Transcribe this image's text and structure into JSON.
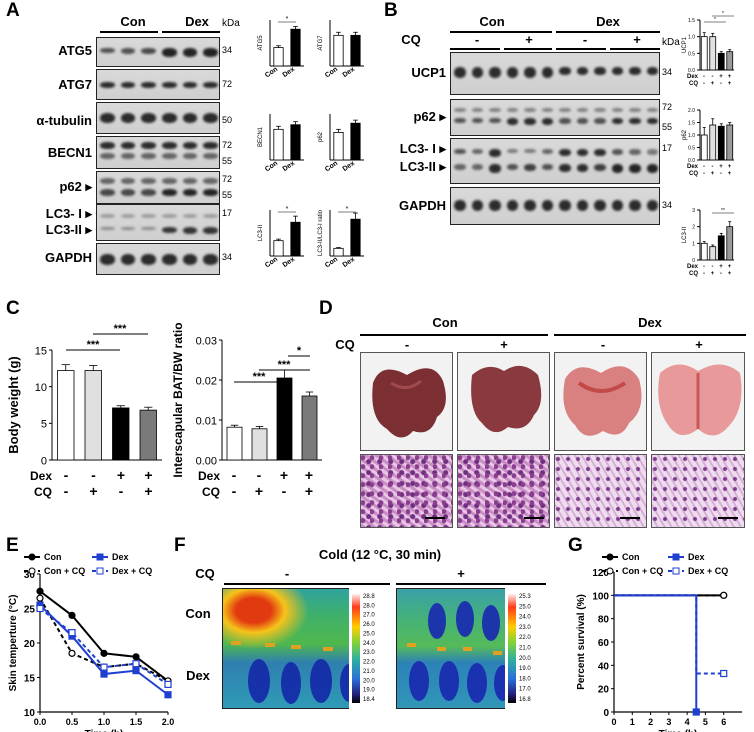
{
  "panels": {
    "A": "A",
    "B": "B",
    "C": "C",
    "D": "D",
    "E": "E",
    "F": "F",
    "G": "G"
  },
  "panelA": {
    "groups": [
      "Con",
      "Dex"
    ],
    "kda": "kDa",
    "rows": [
      {
        "label": "ATG5",
        "mw": [
          "34"
        ]
      },
      {
        "label": "ATG7",
        "mw": [
          "72"
        ]
      },
      {
        "label": "α-tubulin",
        "mw": [
          "50"
        ]
      },
      {
        "label": "BECN1",
        "mw": [
          "72",
          "55"
        ]
      },
      {
        "label": "p62 ▸",
        "mw": [
          "72",
          "55"
        ]
      },
      {
        "label": "LC3- I ▸",
        "mw": [
          "17"
        ]
      },
      {
        "label": "LC3-II ▸",
        "mw": []
      },
      {
        "label": "GAPDH",
        "mw": [
          "34"
        ]
      }
    ],
    "bar_xlabels": [
      "Con",
      "Dex"
    ]
  },
  "panelB": {
    "groups": [
      "Con",
      "Dex"
    ],
    "cq_label": "CQ",
    "cq_signs": [
      "-",
      "+",
      "-",
      "+"
    ],
    "kda": "kDa",
    "rows": [
      {
        "label": "UCP1",
        "mw": [
          "34"
        ]
      },
      {
        "label": "p62 ▸",
        "mw": [
          "72",
          "55"
        ]
      },
      {
        "label": "LC3- I ▸",
        "mw": [
          "17"
        ]
      },
      {
        "label": "LC3-II ▸",
        "mw": []
      },
      {
        "label": "GAPDH",
        "mw": [
          "34"
        ]
      }
    ],
    "dex_row": [
      "Dex",
      "-",
      "-",
      "+",
      "+"
    ],
    "cq_row": [
      "CQ",
      "-",
      "+",
      "-",
      "+"
    ]
  },
  "panelC": {
    "dex_row": [
      "Dex",
      "-",
      "-",
      "+",
      "+"
    ],
    "cq_row": [
      "CQ",
      "-",
      "+",
      "-",
      "+"
    ],
    "sig_left": [
      "***",
      "***"
    ],
    "sig_right": [
      "*",
      "***",
      "***"
    ]
  },
  "panelD": {
    "groups": [
      "Con",
      "Dex"
    ],
    "cq_label": "CQ",
    "cq_signs": [
      "-",
      "+",
      "-",
      "+"
    ]
  },
  "panelF": {
    "title": "Cold (12 °C, 30 min)",
    "cq_label": "CQ",
    "cq_signs": [
      "-",
      "+"
    ],
    "row_labels": [
      "Con",
      "Dex"
    ],
    "scale_left": [
      "28.8",
      "28.0",
      "27.0",
      "26.0",
      "25.0",
      "24.0",
      "23.0",
      "22.0",
      "21.0",
      "20.0",
      "19.0",
      "18.4"
    ],
    "scale_right": [
      "25.3",
      "25.0",
      "24.0",
      "23.0",
      "22.0",
      "21.0",
      "20.0",
      "19.0",
      "18.0",
      "17.0",
      "16.8"
    ]
  },
  "colors": {
    "accent": "#1f3fd0",
    "black": "#000000",
    "grey": "#9a9a9a",
    "lightgrey": "#d9d9d9"
  },
  "chart_data": [
    {
      "id": "A-ATG5",
      "type": "bar",
      "categories": [
        "Con",
        "Dex"
      ],
      "values": [
        1.0,
        2.0
      ],
      "errors": [
        0.1,
        0.15
      ],
      "ylabel": "ATG5",
      "ylim": [
        0,
        2.5
      ],
      "annotations": [
        "*"
      ]
    },
    {
      "id": "A-ATG7",
      "type": "bar",
      "categories": [
        "Con",
        "Dex"
      ],
      "values": [
        1.0,
        1.0
      ],
      "errors": [
        0.1,
        0.1
      ],
      "ylabel": "ATG7",
      "ylim": [
        0,
        1.5
      ]
    },
    {
      "id": "A-BECN1",
      "type": "bar",
      "categories": [
        "Con",
        "Dex"
      ],
      "values": [
        1.0,
        1.15
      ],
      "errors": [
        0.1,
        0.1
      ],
      "ylabel": "BECN1",
      "ylim": [
        0,
        1.5
      ]
    },
    {
      "id": "A-p62",
      "type": "bar",
      "categories": [
        "Con",
        "Dex"
      ],
      "values": [
        0.9,
        1.2
      ],
      "errors": [
        0.1,
        0.1
      ],
      "ylabel": "p62",
      "ylim": [
        0,
        1.5
      ]
    },
    {
      "id": "A-LC3II",
      "type": "bar",
      "categories": [
        "Con",
        "Dex"
      ],
      "values": [
        1.0,
        2.2
      ],
      "errors": [
        0.1,
        0.4
      ],
      "ylabel": "LC3-II",
      "ylim": [
        0,
        3
      ],
      "annotations": [
        "*"
      ]
    },
    {
      "id": "A-ratio",
      "type": "bar",
      "categories": [
        "Con",
        "Dex"
      ],
      "values": [
        0.5,
        2.4
      ],
      "errors": [
        0.05,
        0.4
      ],
      "ylabel": "LC3-II/LC3-I ratio",
      "ylim": [
        0,
        3
      ],
      "annotations": [
        "*"
      ]
    },
    {
      "id": "B-UCP1",
      "type": "bar",
      "categories": [
        "Con",
        "Con+CQ",
        "Dex",
        "Dex+CQ"
      ],
      "values": [
        1.0,
        1.0,
        0.5,
        0.55
      ],
      "errors": [
        0.12,
        0.1,
        0.05,
        0.06
      ],
      "ylabel": "UCP1",
      "yticks": [
        "0.0",
        "0.5",
        "1.0",
        "1.5"
      ],
      "ylim": [
        0,
        1.5
      ],
      "annotations": [
        "*",
        "*"
      ]
    },
    {
      "id": "B-p62",
      "type": "bar",
      "categories": [
        "Con",
        "Con+CQ",
        "Dex",
        "Dex+CQ"
      ],
      "values": [
        1.0,
        1.4,
        1.35,
        1.4
      ],
      "errors": [
        0.3,
        0.25,
        0.1,
        0.1
      ],
      "ylabel": "p62",
      "yticks": [
        "0.0",
        "0.5",
        "1.0",
        "1.5",
        "2.0"
      ],
      "ylim": [
        0,
        2.0
      ]
    },
    {
      "id": "B-LC3II",
      "type": "bar",
      "categories": [
        "Con",
        "Con+CQ",
        "Dex",
        "Dex+CQ"
      ],
      "values": [
        1.0,
        0.8,
        1.45,
        2.0
      ],
      "errors": [
        0.1,
        0.1,
        0.15,
        0.3
      ],
      "ylabel": "LC3-II",
      "yticks": [
        "0",
        "1",
        "2",
        "3"
      ],
      "ylim": [
        0,
        3
      ],
      "annotations": [
        "**"
      ]
    },
    {
      "id": "C-BW",
      "type": "bar",
      "categories": [
        "Con",
        "Con+CQ",
        "Dex",
        "Dex+CQ"
      ],
      "values": [
        12.2,
        12.2,
        7.1,
        6.8
      ],
      "errors": [
        0.8,
        0.7,
        0.3,
        0.4
      ],
      "ylabel": "Body weight (g)",
      "yticks": [
        "0",
        "5",
        "10",
        "15"
      ],
      "ylim": [
        0,
        15
      ]
    },
    {
      "id": "C-BAT",
      "type": "bar",
      "categories": [
        "Con",
        "Con+CQ",
        "Dex",
        "Dex+CQ"
      ],
      "values": [
        0.0082,
        0.0078,
        0.0205,
        0.016
      ],
      "errors": [
        0.0005,
        0.0006,
        0.002,
        0.001
      ],
      "ylabel": "Interscapular BAT/BW ratio",
      "yticks": [
        "0.00",
        "0.01",
        "0.02",
        "0.03"
      ],
      "ylim": [
        0,
        0.03
      ]
    },
    {
      "id": "E",
      "type": "line",
      "title": "",
      "xlabel": "Time (h)",
      "ylabel": "Skin temperture (°C)",
      "xlim": [
        0,
        2
      ],
      "ylim": [
        10,
        30
      ],
      "xticks": [
        "0.0",
        "0.5",
        "1.0",
        "1.5",
        "2.0"
      ],
      "yticks": [
        "10",
        "15",
        "20",
        "25",
        "30"
      ],
      "x": [
        0,
        0.5,
        1.0,
        1.5,
        2.0
      ],
      "series": [
        {
          "name": "Con",
          "values": [
            27.5,
            24,
            18.5,
            18,
            14.5
          ]
        },
        {
          "name": "Con + CQ",
          "values": [
            26.5,
            18.5,
            16.5,
            17,
            14.5
          ]
        },
        {
          "name": "Dex",
          "values": [
            25.5,
            21,
            15.5,
            16,
            12.5
          ]
        },
        {
          "name": "Dex + CQ",
          "values": [
            25,
            21.5,
            16.5,
            17,
            14
          ]
        }
      ]
    },
    {
      "id": "G",
      "type": "line",
      "xlabel": "Time (h)",
      "ylabel": "Percent survival (%)",
      "xlim": [
        0,
        7
      ],
      "ylim": [
        0,
        120
      ],
      "xticks": [
        "0",
        "1",
        "2",
        "3",
        "4",
        "5",
        "6"
      ],
      "yticks": [
        "0",
        "20",
        "40",
        "60",
        "80",
        "100",
        "120"
      ],
      "series": [
        {
          "name": "Con",
          "x": [
            0,
            6
          ],
          "values": [
            100,
            100
          ]
        },
        {
          "name": "Con + CQ",
          "x": [
            0,
            6
          ],
          "values": [
            100,
            100
          ]
        },
        {
          "name": "Dex",
          "x": [
            0,
            4.5,
            4.5
          ],
          "values": [
            100,
            100,
            0
          ]
        },
        {
          "name": "Dex + CQ",
          "x": [
            0,
            4.5,
            4.5,
            6
          ],
          "values": [
            100,
            100,
            33,
            33
          ]
        }
      ]
    }
  ]
}
